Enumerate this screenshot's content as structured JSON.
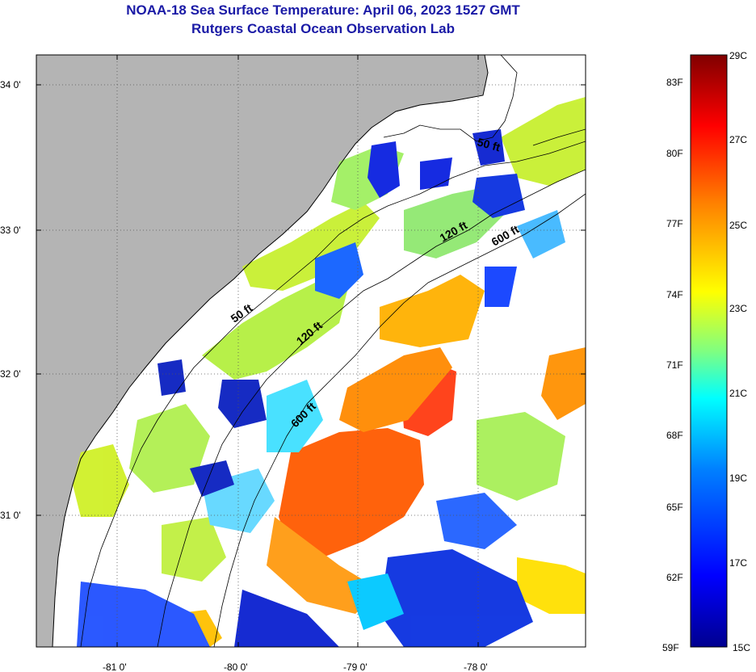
{
  "header": {
    "title": "NOAA-18 Sea Surface Temperature:  April 06, 2023 1527 GMT",
    "subtitle": "Rutgers Coastal Ocean Observation Lab"
  },
  "axes": {
    "lat_labels": [
      "34 0'",
      "33 0'",
      "32 0'",
      "31 0'"
    ],
    "lon_labels": [
      "-81 0'",
      "-80 0'",
      "-79 0'",
      "-78 0'"
    ]
  },
  "isobaths": [
    "50 ft",
    "120 ft",
    "600 ft",
    "50 ft",
    "120 ft",
    "600 ft"
  ],
  "colorbar": {
    "f_labels": [
      "83F",
      "80F",
      "77F",
      "74F",
      "71F",
      "68F",
      "65F",
      "62F",
      "59F"
    ],
    "c_labels": [
      "29C",
      "27C",
      "25C",
      "23C",
      "21C",
      "19C",
      "17C",
      "15C"
    ]
  },
  "colors": {
    "land": "#b4b4b4",
    "title": "#1a1aa6",
    "scale": [
      "#00008f",
      "#0000ff",
      "#0080ff",
      "#00ffff",
      "#80ff80",
      "#ffff00",
      "#ff8000",
      "#ff0000",
      "#800000"
    ]
  }
}
